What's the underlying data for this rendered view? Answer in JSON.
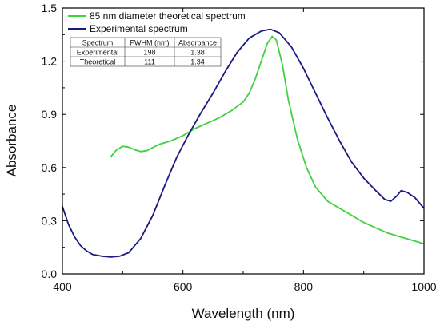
{
  "chart_data": {
    "type": "line",
    "title": "",
    "xlabel": "Wavelength (nm)",
    "ylabel": "Absorbance",
    "xlim": [
      400,
      1000
    ],
    "ylim": [
      0.0,
      1.5
    ],
    "x_ticks": [
      400,
      600,
      800,
      1000
    ],
    "y_ticks": [
      0.0,
      0.3,
      0.6,
      0.9,
      1.2,
      1.5
    ],
    "grid": false,
    "legend_position": "top-left",
    "series": [
      {
        "name": "85 nm diameter theoretical spectrum",
        "color": "#3fd23f",
        "points": [
          [
            480,
            0.66
          ],
          [
            490,
            0.7
          ],
          [
            500,
            0.72
          ],
          [
            510,
            0.715
          ],
          [
            520,
            0.7
          ],
          [
            530,
            0.69
          ],
          [
            540,
            0.695
          ],
          [
            560,
            0.73
          ],
          [
            580,
            0.75
          ],
          [
            600,
            0.78
          ],
          [
            620,
            0.82
          ],
          [
            640,
            0.85
          ],
          [
            660,
            0.88
          ],
          [
            680,
            0.92
          ],
          [
            700,
            0.97
          ],
          [
            710,
            1.02
          ],
          [
            720,
            1.1
          ],
          [
            730,
            1.2
          ],
          [
            740,
            1.3
          ],
          [
            748,
            1.34
          ],
          [
            755,
            1.32
          ],
          [
            765,
            1.18
          ],
          [
            775,
            0.98
          ],
          [
            790,
            0.76
          ],
          [
            805,
            0.6
          ],
          [
            820,
            0.49
          ],
          [
            840,
            0.41
          ],
          [
            860,
            0.37
          ],
          [
            880,
            0.33
          ],
          [
            900,
            0.29
          ],
          [
            920,
            0.26
          ],
          [
            940,
            0.23
          ],
          [
            960,
            0.21
          ],
          [
            980,
            0.19
          ],
          [
            1000,
            0.17
          ]
        ]
      },
      {
        "name": "Experimental spectrum",
        "color": "#1a1a80",
        "points": [
          [
            400,
            0.38
          ],
          [
            410,
            0.28
          ],
          [
            420,
            0.21
          ],
          [
            430,
            0.16
          ],
          [
            440,
            0.13
          ],
          [
            450,
            0.11
          ],
          [
            465,
            0.1
          ],
          [
            480,
            0.095
          ],
          [
            495,
            0.1
          ],
          [
            510,
            0.12
          ],
          [
            530,
            0.2
          ],
          [
            550,
            0.33
          ],
          [
            570,
            0.5
          ],
          [
            590,
            0.66
          ],
          [
            610,
            0.79
          ],
          [
            630,
            0.91
          ],
          [
            650,
            1.02
          ],
          [
            670,
            1.14
          ],
          [
            690,
            1.25
          ],
          [
            710,
            1.33
          ],
          [
            730,
            1.37
          ],
          [
            745,
            1.38
          ],
          [
            760,
            1.36
          ],
          [
            780,
            1.28
          ],
          [
            800,
            1.16
          ],
          [
            820,
            1.02
          ],
          [
            840,
            0.88
          ],
          [
            860,
            0.75
          ],
          [
            880,
            0.63
          ],
          [
            900,
            0.54
          ],
          [
            920,
            0.47
          ],
          [
            935,
            0.42
          ],
          [
            945,
            0.41
          ],
          [
            955,
            0.44
          ],
          [
            962,
            0.47
          ],
          [
            972,
            0.46
          ],
          [
            985,
            0.43
          ],
          [
            1000,
            0.37
          ]
        ]
      }
    ],
    "table": {
      "headers": [
        "Spectrum",
        "FWHM (nm)",
        "Absorbance"
      ],
      "rows": [
        [
          "Experimental",
          "198",
          "1.38"
        ],
        [
          "Theoretical",
          "111",
          "1.34"
        ]
      ]
    }
  }
}
